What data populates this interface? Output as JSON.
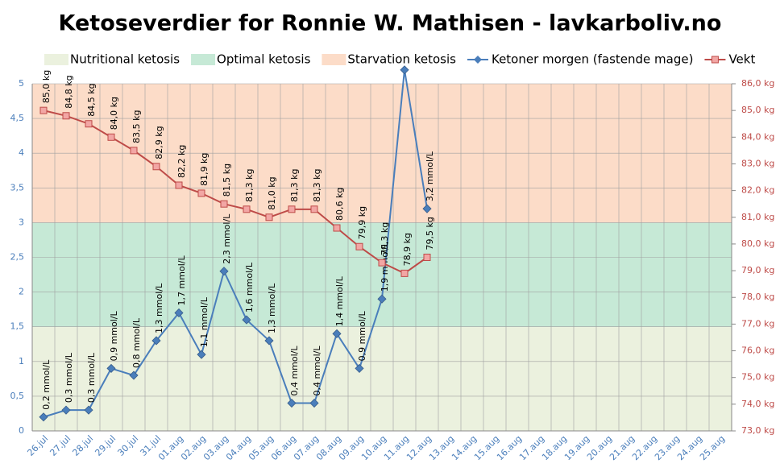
{
  "chart_data": {
    "type": "line",
    "title": "Ketoseverdier for Ronnie W. Mathisen - lavkarboliv.no",
    "bands": [
      {
        "name": "Nutritional ketosis",
        "color": "#ebf1de",
        "from": 0,
        "to": 1.5
      },
      {
        "name": "Optimal ketosis",
        "color": "#c6e9d6",
        "from": 1.5,
        "to": 3
      },
      {
        "name": "Starvation ketosis",
        "color": "#fcdcc8",
        "from": 3,
        "to": 5
      }
    ],
    "categories": [
      "26.jul",
      "27.jul",
      "28.jul",
      "29.jul",
      "30.jul",
      "31.jul",
      "01.aug",
      "02.aug",
      "03.aug",
      "04.aug",
      "05.aug",
      "06.aug",
      "07.aug",
      "08.aug",
      "09.aug",
      "10.aug",
      "11.aug",
      "12.aug",
      "13.aug",
      "14.aug",
      "15.aug",
      "16.aug",
      "17.aug",
      "18.aug",
      "19.aug",
      "20.aug",
      "21.aug",
      "22.aug",
      "23.aug",
      "24.aug",
      "25.aug"
    ],
    "series": [
      {
        "name": "Ketoner morgen (fastende mage)",
        "color": "#4a7ebb",
        "marker": "diamond",
        "values": [
          0.2,
          0.3,
          0.3,
          0.9,
          0.8,
          1.3,
          1.7,
          1.1,
          2.3,
          1.6,
          1.3,
          0.4,
          0.4,
          1.4,
          0.9,
          1.9,
          5.2,
          3.2,
          null,
          null,
          null,
          null,
          null,
          null,
          null,
          null,
          null,
          null,
          null,
          null,
          null
        ],
        "value_labels": [
          "0,2 mmol/L",
          "0,3 mmol/L",
          "0,3 mmol/L",
          "0,9 mmol/L",
          "0,8 mmol/L",
          "1,3 mmol/L",
          "1,7 mmol/L",
          "1,1 mmol/L",
          "2,3 mmol/L",
          "1,6 mmol/L",
          "1,3 mmol/L",
          "0,4 mmol/L",
          "0,4 mmol/L",
          "1,4 mmol/L",
          "0,9 mmol/L",
          "1,9 mmol/L",
          null,
          "3,2 mmol/L",
          null,
          null,
          null,
          null,
          null,
          null,
          null,
          null,
          null,
          null,
          null,
          null,
          null
        ]
      },
      {
        "name": "Vekt",
        "color": "#be4b48",
        "marker": "square",
        "axis": "y2",
        "values": [
          85.0,
          84.8,
          84.5,
          84.0,
          83.5,
          82.9,
          82.2,
          81.9,
          81.5,
          81.3,
          81.0,
          81.3,
          81.3,
          80.6,
          79.9,
          79.3,
          78.9,
          79.5,
          null,
          null,
          null,
          null,
          null,
          null,
          null,
          null,
          null,
          null,
          null,
          null,
          null
        ],
        "value_labels": [
          "85,0 kg",
          "84,8 kg",
          "84,5 kg",
          "84,0 kg",
          "83,5 kg",
          "82,9 kg",
          "82,2 kg",
          "81,9 kg",
          "81,5 kg",
          "81,3 kg",
          "81,0 kg",
          "81,3 kg",
          "81,3 kg",
          "80,6 kg",
          "79,9 kg",
          "79,3 kg",
          "78,9 kg",
          "79,5 kg",
          null,
          null,
          null,
          null,
          null,
          null,
          null,
          null,
          null,
          null,
          null,
          null,
          null
        ]
      }
    ],
    "ylim": [
      0,
      5
    ],
    "yticks": [
      0,
      {
        "value": 0.5,
        "label": "0,5"
      },
      1,
      {
        "value": 1.5,
        "label": "1,5"
      },
      2,
      {
        "value": 2.5,
        "label": "2,5"
      },
      3,
      {
        "value": 3.5,
        "label": "3,5"
      },
      4,
      {
        "value": 4.5,
        "label": "4,5"
      },
      5
    ],
    "y2lim": [
      73,
      86
    ],
    "y2ticks": [
      {
        "value": 73,
        "label": "73,0 kg"
      },
      {
        "value": 74,
        "label": "74,0 kg"
      },
      {
        "value": 75,
        "label": "75,0 kg"
      },
      {
        "value": 76,
        "label": "76,0 kg"
      },
      {
        "value": 77,
        "label": "77,0 kg"
      },
      {
        "value": 78,
        "label": "78,0 kg"
      },
      {
        "value": 79,
        "label": "79,0 kg"
      },
      {
        "value": 80,
        "label": "80,0 kg"
      },
      {
        "value": 81,
        "label": "81,0 kg"
      },
      {
        "value": 82,
        "label": "82,0 kg"
      },
      {
        "value": 83,
        "label": "83,0 kg"
      },
      {
        "value": 84,
        "label": "84,0 kg"
      },
      {
        "value": 85,
        "label": "85,0 kg"
      },
      {
        "value": 86,
        "label": "86,0 kg"
      }
    ],
    "grid": true
  }
}
